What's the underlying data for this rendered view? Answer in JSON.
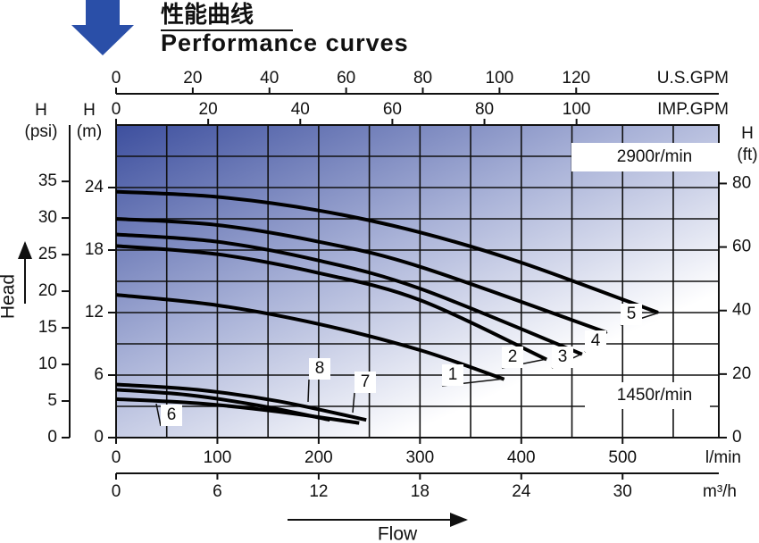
{
  "chart_data": {
    "type": "line",
    "title": "性能曲线",
    "subtitle": "Performance curves",
    "x_label": "Flow",
    "y_label": "Head",
    "x_unit": "l/min",
    "xlim": [
      0,
      595
    ],
    "xticks": [
      0,
      100,
      200,
      300,
      400,
      500
    ],
    "xgrid": [
      50,
      100,
      150,
      200,
      250,
      300,
      350,
      400,
      450,
      500,
      550
    ],
    "x2": {
      "unit": "m³/h",
      "lim": [
        0,
        35.7
      ],
      "ticks": [
        0,
        6,
        12,
        18,
        24,
        30
      ]
    },
    "x3": {
      "unit": "U.S.GPM",
      "lim": [
        0,
        157.2
      ],
      "ticks": [
        0,
        20,
        40,
        60,
        80,
        100,
        120
      ]
    },
    "x4": {
      "unit": "IMP.GPM",
      "lim": [
        0,
        130.9
      ],
      "ticks": [
        0,
        20,
        40,
        60,
        80,
        100
      ]
    },
    "y_name": "H",
    "y_unit": "(m)",
    "ylim": [
      0,
      30
    ],
    "yticks": [
      0,
      6,
      12,
      18,
      24
    ],
    "ygrid": [
      3,
      6,
      9,
      12,
      15,
      18,
      21,
      24,
      27
    ],
    "y2": {
      "name": "H",
      "unit": "(psi)",
      "lim": [
        0,
        42.7
      ],
      "ticks": [
        0,
        5,
        10,
        15,
        20,
        25,
        30,
        35
      ]
    },
    "y3": {
      "name": "H",
      "unit": "(ft)",
      "lim": [
        0,
        98.4
      ],
      "ticks": [
        0,
        20,
        40,
        60,
        80
      ]
    },
    "annotations": [
      "2900r/min",
      "1450r/min"
    ],
    "series": [
      {
        "name": "1",
        "color": "#000000",
        "x": [
          0,
          100,
          200,
          300,
          383
        ],
        "values": [
          13.7,
          12.7,
          10.9,
          8.4,
          5.6
        ]
      },
      {
        "name": "2",
        "color": "#000000",
        "x": [
          0,
          100,
          200,
          300,
          425
        ],
        "values": [
          18.4,
          17.6,
          15.8,
          13.2,
          7.5
        ]
      },
      {
        "name": "3",
        "color": "#000000",
        "x": [
          0,
          100,
          200,
          300,
          460
        ],
        "values": [
          19.5,
          18.8,
          17.0,
          14.3,
          8.0
        ]
      },
      {
        "name": "4",
        "color": "#000000",
        "x": [
          0,
          100,
          200,
          300,
          484
        ],
        "values": [
          21.0,
          20.4,
          18.8,
          16.4,
          10.1
        ]
      },
      {
        "name": "5",
        "color": "#000000",
        "x": [
          0,
          100,
          200,
          300,
          400,
          535
        ],
        "values": [
          23.6,
          23.1,
          21.8,
          19.7,
          16.8,
          12.0
        ]
      },
      {
        "name": "6",
        "color": "#000000",
        "x": [
          0,
          80,
          160,
          240
        ],
        "values": [
          3.7,
          3.3,
          2.5,
          1.4
        ]
      },
      {
        "name": "7",
        "color": "#000000",
        "x": [
          0,
          80,
          160,
          247
        ],
        "values": [
          5.1,
          4.6,
          3.5,
          1.7
        ]
      },
      {
        "name": "8",
        "color": "#000000",
        "x": [
          0,
          70,
          140,
          211
        ],
        "values": [
          4.6,
          4.1,
          3.1,
          1.7
        ]
      }
    ]
  }
}
